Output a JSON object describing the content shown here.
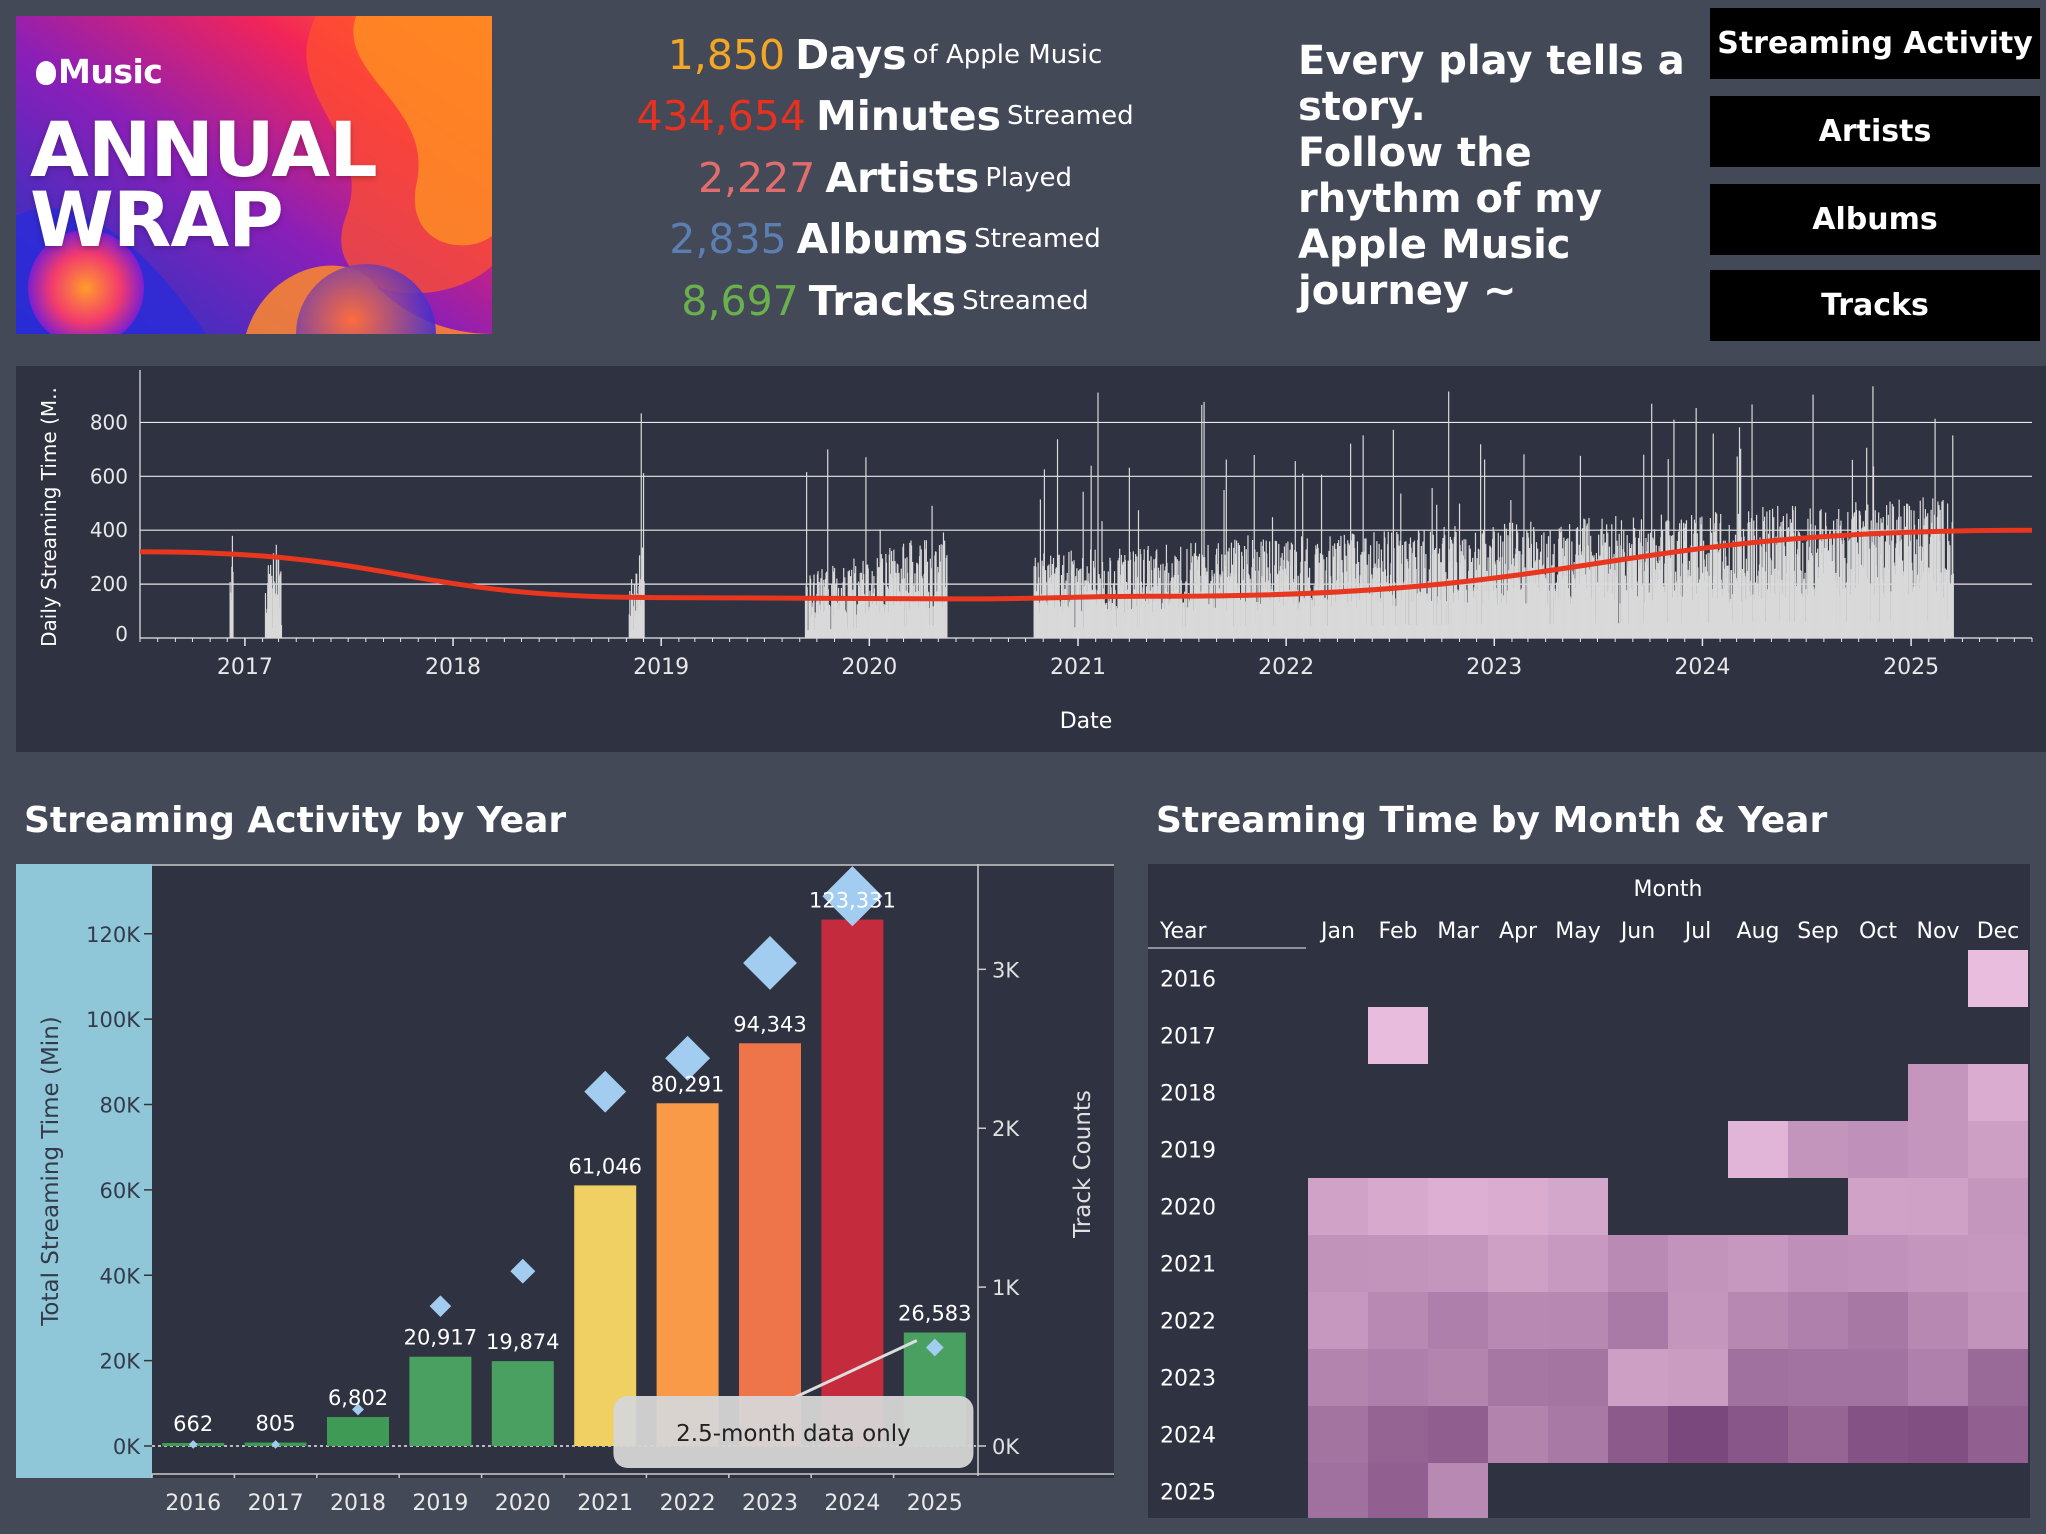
{
  "header": {
    "logo": {
      "brand": "Music",
      "line1": "ANNUAL",
      "line2": "WRAP"
    },
    "stats": [
      {
        "value": "1,850",
        "unit": "Days",
        "suffix": "of Apple Music",
        "color": "#f5a623"
      },
      {
        "value": "434,654",
        "unit": "Minutes",
        "suffix": "Streamed",
        "color": "#e8311f"
      },
      {
        "value": "2,227",
        "unit": "Artists",
        "suffix": "Played",
        "color": "#e26d6d"
      },
      {
        "value": "2,835",
        "unit": "Albums",
        "suffix": "Streamed",
        "color": "#5b7fb2"
      },
      {
        "value": "8,697",
        "unit": "Tracks",
        "suffix": "Streamed",
        "color": "#6ab04c"
      }
    ],
    "tagline": "Every play tells a story.\nFollow the rhythm of my Apple Music journey ~",
    "nav": [
      "Streaming Activity",
      "Artists",
      "Albums",
      "Tracks"
    ]
  },
  "colors": {
    "background": "#444957",
    "panel": "#2f3241",
    "daily_bars": "#d9d9d9",
    "trend_line": "#e8361f",
    "track_marker": "#a3cdf0",
    "axis_band": "#8fc6d8"
  },
  "chart_data": [
    {
      "type": "bar",
      "ylabel": "Daily Streaming Time (M..",
      "xlabel": "Date",
      "x_ticks": [
        "2017",
        "2018",
        "2019",
        "2020",
        "2021",
        "2022",
        "2023",
        "2024",
        "2025"
      ],
      "y_ticks": [
        0,
        200,
        400,
        600,
        800
      ],
      "ylim": [
        0,
        950
      ],
      "x_range": [
        "2016-07-01",
        "2025-08-01"
      ],
      "grid": true,
      "series": [
        {
          "activity_periods": [
            {
              "start": "2016-12-05",
              "end": "2016-12-10",
              "typical": 350,
              "peak": 390
            },
            {
              "start": "2017-02-05",
              "end": "2017-03-05",
              "typical": 260,
              "peak": 410
            },
            {
              "start": "2018-11-05",
              "end": "2018-12-01",
              "typical": 240,
              "peak": 910
            },
            {
              "start": "2019-09-10",
              "end": "2020-05-15",
              "typical": 260,
              "peak": 800
            },
            {
              "start": "2020-10-15",
              "end": "2025-03-15",
              "typical": 340,
              "peak": 950
            }
          ]
        }
      ],
      "trend": {
        "points": [
          [
            "2016-07-01",
            320
          ],
          [
            "2019-01-01",
            150
          ],
          [
            "2020-06-01",
            145
          ],
          [
            "2021-06-01",
            155
          ],
          [
            "2025-08-01",
            400
          ]
        ]
      }
    },
    {
      "type": "bar",
      "title": "Streaming Activity by Year",
      "categories": [
        "2016",
        "2017",
        "2018",
        "2019",
        "2020",
        "2021",
        "2022",
        "2023",
        "2024",
        "2025"
      ],
      "series": [
        {
          "name": "Total Streaming Time (Min)",
          "values": [
            662,
            805,
            6802,
            20917,
            19874,
            61046,
            80291,
            94343,
            123331,
            26583
          ],
          "labels": [
            "662",
            "805",
            "6,802",
            "20,917",
            "19,874",
            "61,046",
            "80,291",
            "94,343",
            "123,331",
            "26,583"
          ],
          "colors": [
            "#3e9a55",
            "#3e9a55",
            "#3e9a55",
            "#4aa061",
            "#4aa061",
            "#f0cf63",
            "#f99a48",
            "#ee744a",
            "#c42b3c",
            "#4aa061"
          ]
        },
        {
          "name": "Track Counts",
          "values": [
            10,
            10,
            230,
            880,
            1100,
            2230,
            2440,
            3040,
            3460,
            620
          ]
        }
      ],
      "ylabel": "Total Streaming Time (Min)",
      "y2label": "Track Counts",
      "ylim": [
        0,
        134000
      ],
      "y2lim": [
        0,
        3600
      ],
      "y_ticks": [
        "0K",
        "20K",
        "40K",
        "60K",
        "80K",
        "100K",
        "120K"
      ],
      "y2_ticks": [
        "0K",
        "1K",
        "2K",
        "3K"
      ],
      "annotation": "2.5-month data only"
    },
    {
      "type": "heatmap",
      "title": "Streaming Time by Month & Year",
      "column_header": "Month",
      "row_header": "Year",
      "months": [
        "Jan",
        "Feb",
        "Mar",
        "Apr",
        "May",
        "Jun",
        "Jul",
        "Aug",
        "Sep",
        "Oct",
        "Nov",
        "Dec"
      ],
      "years": [
        "2016",
        "2017",
        "2018",
        "2019",
        "2020",
        "2021",
        "2022",
        "2023",
        "2024",
        "2025"
      ],
      "values": [
        [
          null,
          null,
          null,
          null,
          null,
          null,
          null,
          null,
          null,
          null,
          null,
          662
        ],
        [
          null,
          805,
          null,
          null,
          null,
          null,
          null,
          null,
          null,
          null,
          null,
          null
        ],
        [
          null,
          null,
          null,
          null,
          null,
          null,
          null,
          null,
          null,
          null,
          4500,
          2300
        ],
        [
          null,
          null,
          null,
          null,
          null,
          null,
          null,
          1500,
          4600,
          5000,
          4500,
          3600
        ],
        [
          3300,
          2600,
          2000,
          2300,
          2900,
          null,
          null,
          null,
          null,
          3300,
          3400,
          4500
        ],
        [
          4800,
          4700,
          4500,
          3500,
          4200,
          5600,
          4700,
          4300,
          5100,
          4900,
          4500,
          4300
        ],
        [
          4300,
          5700,
          6700,
          5700,
          5800,
          7200,
          4500,
          5800,
          6600,
          7400,
          5800,
          4700
        ],
        [
          6200,
          6700,
          6200,
          7500,
          7600,
          3600,
          3900,
          8100,
          7900,
          7900,
          6600,
          8800
        ],
        [
          7700,
          9300,
          9800,
          6300,
          7300,
          10200,
          12000,
          10600,
          9200,
          11000,
          11300,
          9700
        ],
        [
          8100,
          9700,
          5700,
          null,
          null,
          null,
          null,
          null,
          null,
          null,
          null,
          null
        ]
      ]
    }
  ]
}
